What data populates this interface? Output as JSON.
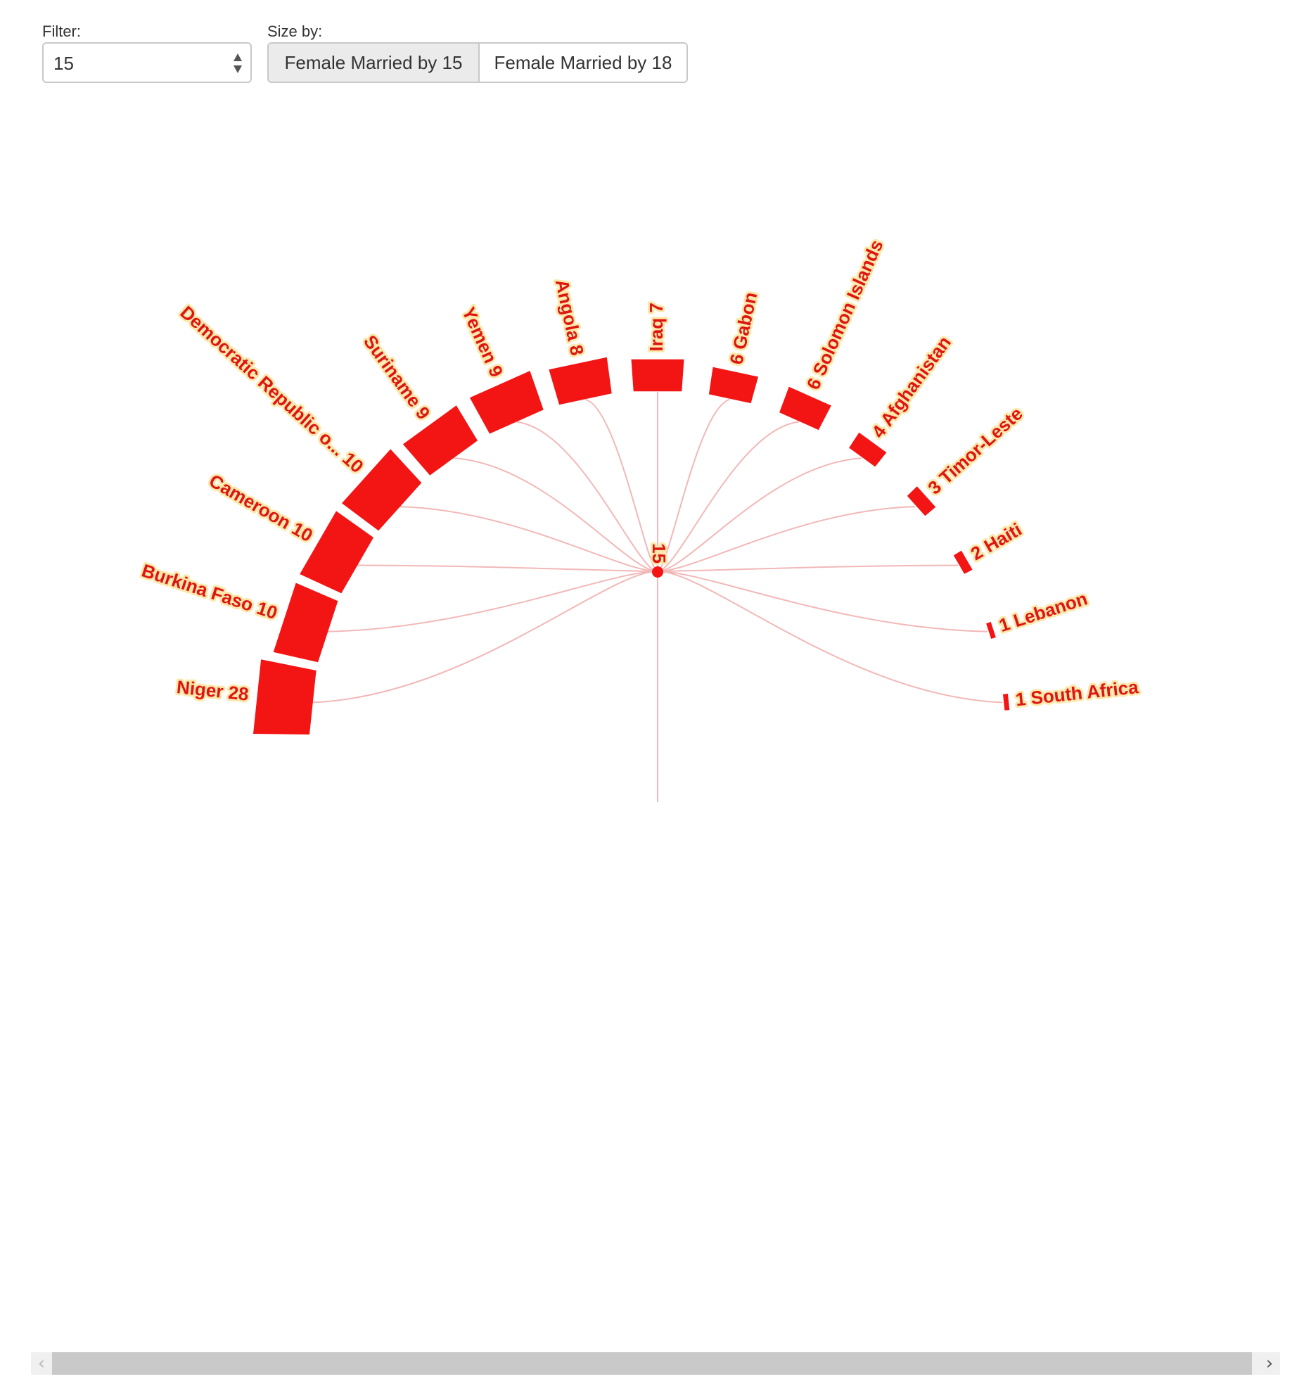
{
  "controls": {
    "filter_label": "Filter:",
    "filter_value": "15",
    "size_label": "Size by:",
    "size_options": [
      "Female Married by 15",
      "Female Married by 18"
    ],
    "size_selected": "Female Married by 15"
  },
  "colors": {
    "bar": "#f31414",
    "label_text": "#dd1515",
    "label_halo": "#fbe7a8",
    "link": "#f2b8b8"
  },
  "chart_data": {
    "type": "radial-bar",
    "center_label": "15",
    "categories": [
      "Niger",
      "Burkina Faso",
      "Cameroon",
      "Democratic Republic o...",
      "Suriname",
      "Yemen",
      "Angola",
      "Iraq",
      "Gabon",
      "Solomon Islands",
      "Afghanistan",
      "Timor-Leste",
      "Haiti",
      "Lebanon",
      "South Africa"
    ],
    "values": [
      28,
      10,
      10,
      10,
      9,
      9,
      8,
      7,
      6,
      6,
      4,
      3,
      2,
      1,
      1
    ],
    "labels": [
      "Niger 28",
      "Burkina Faso 10",
      "Cameroon 10",
      "Democratic Republic o... 10",
      "Suriname 9",
      "Yemen 9",
      "Angola 8",
      "Iraq 7",
      "6 Gabon",
      "6 Solomon Islands",
      "4 Afghanistan",
      "3 Timor-Leste",
      "2 Haiti",
      "1 Lebanon",
      "1 South Africa"
    ],
    "arc": "semicircle, left to right",
    "legend": "none"
  },
  "scrollbar": {
    "left_arrow": "‹",
    "right_arrow": "›"
  }
}
